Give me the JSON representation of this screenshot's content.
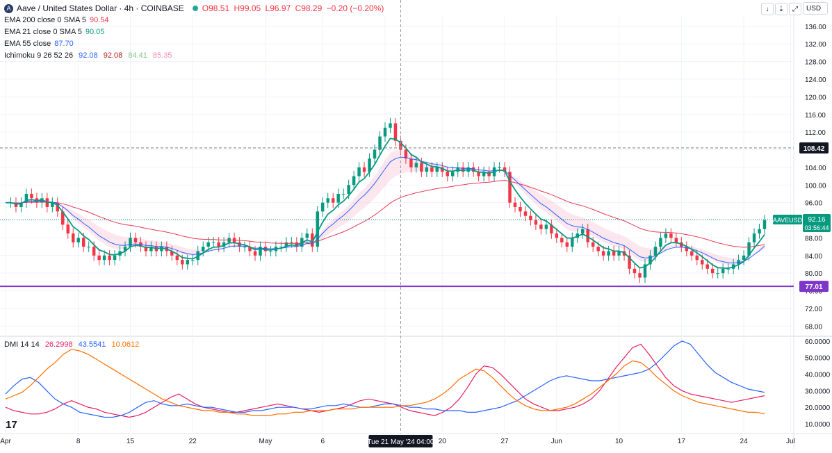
{
  "header": {
    "symbol_title": "Aave / United States Dollar · 4h · COINBASE",
    "open": "O98.51",
    "high": "H99.05",
    "low": "L96.97",
    "close": "C98.29",
    "change": "−0.20 (−0.20%)",
    "currency_button": "USD"
  },
  "indicators": [
    {
      "label": "EMA 200 close 0 SMA 5",
      "value": "90.54",
      "color": "#e53950"
    },
    {
      "label": "EMA 21 close 0 SMA 5",
      "value": "90.05",
      "color": "#089981"
    },
    {
      "label": "EMA 55 close",
      "value": "87.70",
      "color": "#2962ff"
    }
  ],
  "ichimoku": {
    "label": "Ichimoku 9 26 52 26",
    "values": [
      "92.08",
      "92.08",
      "84.41",
      "85.35"
    ],
    "colors": [
      "#2962ff",
      "#b71c1c",
      "#81c784",
      "#f48fb1"
    ]
  },
  "dmi": {
    "label": "DMI 14 14",
    "values": [
      "26.2998",
      "43.5541",
      "10.0612"
    ],
    "colors": [
      "#e91e63",
      "#2962ff",
      "#ff6d00"
    ]
  },
  "price_labels": {
    "dashed_level": "108.42",
    "current_symbol": "AAVEUSD",
    "current_price": "92.16",
    "countdown": "03:56:44",
    "support": "77.01"
  },
  "crosshair_label": "Tue 21 May '24  04:00",
  "colors": {
    "up": "#089981",
    "down": "#f23645",
    "support_line": "#7e36c9",
    "ema200": "#e53950",
    "ema21": "#089981",
    "ema55": "#2962ff"
  },
  "chart_data": [
    {
      "type": "candlestick",
      "title": "Aave / United States Dollar · 4h · COINBASE",
      "y_ticks": [
        "136.00",
        "132.00",
        "128.00",
        "124.00",
        "120.00",
        "116.00",
        "112.00",
        "108.00",
        "104.00",
        "100.00",
        "96.00",
        "92.00",
        "88.00",
        "84.00",
        "80.00",
        "76.00",
        "72.00",
        "68.00"
      ],
      "x_ticks": [
        "Apr",
        "8",
        "15",
        "22",
        "May",
        "6",
        "13",
        "20",
        "27",
        "Jun",
        "10",
        "17",
        "24",
        "Jul"
      ],
      "ylim": [
        66,
        138.5
      ],
      "horizontal_lines": [
        {
          "value": 108.42,
          "style": "dashed"
        },
        {
          "value": 77.01,
          "style": "solid"
        }
      ],
      "close_path": [
        [
          0,
          96
        ],
        [
          1,
          96
        ],
        [
          2,
          95
        ],
        [
          3,
          96
        ],
        [
          4,
          98
        ],
        [
          5,
          97
        ],
        [
          6,
          96
        ],
        [
          7,
          97
        ],
        [
          8,
          95
        ],
        [
          9,
          96
        ],
        [
          10,
          94
        ],
        [
          11,
          91
        ],
        [
          12,
          89
        ],
        [
          13,
          87
        ],
        [
          14,
          88
        ],
        [
          15,
          86
        ],
        [
          16,
          86
        ],
        [
          17,
          84
        ],
        [
          18,
          83
        ],
        [
          19,
          84
        ],
        [
          20,
          83
        ],
        [
          21,
          84
        ],
        [
          22,
          85
        ],
        [
          23,
          86
        ],
        [
          24,
          88
        ],
        [
          25,
          87
        ],
        [
          26,
          86
        ],
        [
          27,
          85
        ],
        [
          28,
          86
        ],
        [
          29,
          85
        ],
        [
          30,
          86
        ],
        [
          31,
          85
        ],
        [
          32,
          84
        ],
        [
          33,
          83
        ],
        [
          34,
          82
        ],
        [
          35,
          83
        ],
        [
          36,
          83
        ],
        [
          37,
          85
        ],
        [
          38,
          86
        ],
        [
          39,
          87
        ],
        [
          40,
          87
        ],
        [
          41,
          86
        ],
        [
          42,
          87
        ],
        [
          43,
          88
        ],
        [
          44,
          87
        ],
        [
          45,
          86
        ],
        [
          46,
          86
        ],
        [
          47,
          85
        ],
        [
          48,
          84
        ],
        [
          49,
          86
        ],
        [
          50,
          85
        ],
        [
          51,
          85
        ],
        [
          52,
          86
        ],
        [
          53,
          86
        ],
        [
          54,
          87
        ],
        [
          55,
          87
        ],
        [
          56,
          86
        ],
        [
          57,
          88
        ],
        [
          58,
          89
        ],
        [
          59,
          86
        ],
        [
          60,
          94
        ],
        [
          61,
          96
        ],
        [
          62,
          97
        ],
        [
          63,
          96
        ],
        [
          64,
          98
        ],
        [
          65,
          98
        ],
        [
          66,
          100
        ],
        [
          67,
          102
        ],
        [
          68,
          104
        ],
        [
          69,
          103
        ],
        [
          70,
          106
        ],
        [
          71,
          108
        ],
        [
          72,
          111
        ],
        [
          73,
          113
        ],
        [
          74,
          114
        ],
        [
          75,
          110
        ],
        [
          76,
          108
        ],
        [
          77,
          106
        ],
        [
          78,
          104
        ],
        [
          79,
          105
        ],
        [
          80,
          103
        ],
        [
          81,
          104
        ],
        [
          82,
          103
        ],
        [
          83,
          104
        ],
        [
          84,
          103
        ],
        [
          85,
          102
        ],
        [
          86,
          103
        ],
        [
          87,
          104
        ],
        [
          88,
          103
        ],
        [
          89,
          104
        ],
        [
          90,
          103
        ],
        [
          91,
          102
        ],
        [
          92,
          103
        ],
        [
          93,
          102
        ],
        [
          94,
          104
        ],
        [
          95,
          104
        ],
        [
          96,
          103
        ],
        [
          97,
          96
        ],
        [
          98,
          95
        ],
        [
          99,
          94
        ],
        [
          100,
          93
        ],
        [
          101,
          92
        ],
        [
          102,
          91
        ],
        [
          103,
          90
        ],
        [
          104,
          91
        ],
        [
          105,
          89
        ],
        [
          106,
          88
        ],
        [
          107,
          87
        ],
        [
          108,
          86
        ],
        [
          109,
          88
        ],
        [
          110,
          89
        ],
        [
          111,
          90
        ],
        [
          112,
          87
        ],
        [
          113,
          86
        ],
        [
          114,
          85
        ],
        [
          115,
          84
        ],
        [
          116,
          85
        ],
        [
          117,
          84
        ],
        [
          118,
          85
        ],
        [
          119,
          84
        ],
        [
          120,
          81
        ],
        [
          121,
          80
        ],
        [
          122,
          79
        ],
        [
          123,
          82
        ],
        [
          124,
          84
        ],
        [
          125,
          86
        ],
        [
          126,
          88
        ],
        [
          127,
          89
        ],
        [
          128,
          88
        ],
        [
          129,
          87
        ],
        [
          130,
          86
        ],
        [
          131,
          85
        ],
        [
          132,
          84
        ],
        [
          133,
          83
        ],
        [
          134,
          82
        ],
        [
          135,
          81
        ],
        [
          136,
          80
        ],
        [
          137,
          80
        ],
        [
          138,
          81
        ],
        [
          139,
          81
        ],
        [
          140,
          82
        ],
        [
          141,
          83
        ],
        [
          142,
          84
        ],
        [
          143,
          87
        ],
        [
          144,
          89
        ],
        [
          145,
          90
        ],
        [
          146,
          92
        ]
      ]
    },
    {
      "type": "line",
      "title": "DMI 14 14",
      "y_ticks": [
        "60.0000",
        "50.0000",
        "40.0000",
        "30.0000",
        "20.0000",
        "10.0000"
      ],
      "ylim": [
        5,
        62
      ],
      "series": [
        {
          "name": "DI+",
          "values": [
            20,
            18,
            17,
            16,
            16,
            17,
            19,
            22,
            24,
            22,
            20,
            19,
            17,
            16,
            15,
            14,
            15,
            17,
            20,
            23,
            26,
            28,
            25,
            22,
            20,
            19,
            18,
            17,
            17,
            18,
            19,
            20,
            21,
            22,
            21,
            20,
            19,
            18,
            17,
            18,
            19,
            20,
            22,
            24,
            25,
            24,
            23,
            22,
            20,
            18,
            17,
            16,
            15,
            17,
            20,
            25,
            32,
            40,
            45,
            44,
            40,
            35,
            30,
            25,
            22,
            20,
            18,
            18,
            19,
            20,
            22,
            25,
            30,
            37,
            44,
            50,
            56,
            58,
            52,
            45,
            38,
            33,
            30,
            28,
            27,
            26,
            25,
            24,
            23,
            24,
            25,
            26,
            27
          ]
        },
        {
          "name": "DI-",
          "values": [
            28,
            33,
            37,
            38,
            35,
            30,
            25,
            22,
            20,
            17,
            16,
            15,
            14,
            14,
            15,
            17,
            20,
            23,
            24,
            22,
            21,
            21,
            22,
            21,
            20,
            20,
            19,
            18,
            17,
            17,
            18,
            18,
            19,
            20,
            20,
            20,
            19,
            19,
            20,
            21,
            21,
            22,
            21,
            20,
            20,
            21,
            22,
            22,
            21,
            20,
            20,
            19,
            19,
            18,
            18,
            18,
            17,
            17,
            18,
            19,
            20,
            22,
            24,
            27,
            30,
            33,
            36,
            38,
            39,
            38,
            37,
            36,
            36,
            37,
            38,
            39,
            40,
            41,
            43,
            47,
            52,
            57,
            60,
            58,
            52,
            46,
            41,
            38,
            35,
            33,
            31,
            30,
            29
          ]
        },
        {
          "name": "ADX",
          "values": [
            25,
            27,
            29,
            33,
            38,
            43,
            47,
            52,
            55,
            54,
            52,
            49,
            46,
            43,
            40,
            37,
            34,
            31,
            28,
            25,
            23,
            21,
            20,
            19,
            18,
            18,
            17,
            17,
            16,
            16,
            15,
            15,
            15,
            16,
            16,
            17,
            17,
            18,
            18,
            18,
            19,
            19,
            19,
            20,
            20,
            20,
            20,
            20,
            21,
            21,
            22,
            23,
            25,
            28,
            32,
            37,
            40,
            43,
            42,
            38,
            33,
            28,
            24,
            21,
            19,
            18,
            18,
            19,
            20,
            22,
            25,
            28,
            32,
            36,
            40,
            45,
            48,
            47,
            43,
            38,
            34,
            30,
            27,
            25,
            23,
            22,
            21,
            20,
            19,
            18,
            17,
            17,
            16
          ]
        }
      ]
    }
  ]
}
